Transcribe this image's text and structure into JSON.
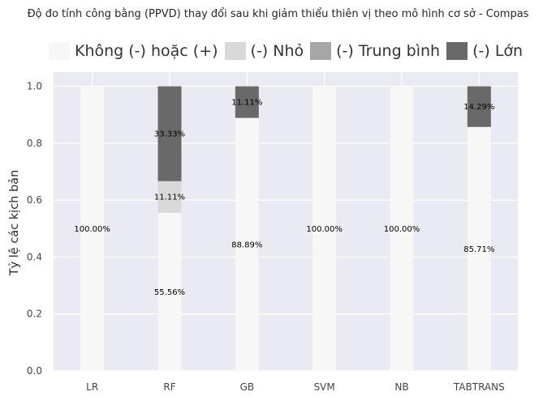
{
  "chart_data": {
    "type": "bar",
    "stacked": true,
    "title": "Độ đo tính công bằng (PPVD) thay đổi sau khi giảm thiểu thiên vị theo mô hình cơ sở - Compas",
    "xlabel": "",
    "ylabel": "Tỷ lệ các kịch bản",
    "ylim": [
      0,
      1.05
    ],
    "yticks": [
      "0.0",
      "0.2",
      "0.4",
      "0.6",
      "0.8",
      "1.0"
    ],
    "grid": true,
    "legend_position": "top",
    "categories": [
      "LR",
      "RF",
      "GB",
      "SVM",
      "NB",
      "TABTRANS"
    ],
    "series": [
      {
        "name": "Không (-) hoặc (+)",
        "color": "#f7f7f7",
        "values": [
          1.0,
          0.5556,
          0.8889,
          1.0,
          1.0,
          0.8571
        ],
        "labels": [
          "100.00%",
          "55.56%",
          "88.89%",
          "100.00%",
          "100.00%",
          "85.71%"
        ]
      },
      {
        "name": "(-) Nhỏ",
        "color": "#d9d9d9",
        "values": [
          0,
          0.1111,
          0,
          0,
          0,
          0
        ],
        "labels": [
          "",
          "11.11%",
          "",
          "",
          "",
          ""
        ]
      },
      {
        "name": "(-) Trung bình",
        "color": "#a6a6a6",
        "values": [
          0,
          0,
          0,
          0,
          0,
          0
        ],
        "labels": [
          "",
          "",
          "",
          "",
          "",
          ""
        ]
      },
      {
        "name": "(-) Lớn",
        "color": "#696969",
        "values": [
          0,
          0.3333,
          0.1111,
          0,
          0,
          0.1429
        ],
        "labels": [
          "",
          "33.33%",
          "11.11%",
          "",
          "",
          "14.29%"
        ]
      }
    ]
  },
  "colors": {
    "plot_background": "#eaeaf2",
    "grid": "#ffffff"
  }
}
